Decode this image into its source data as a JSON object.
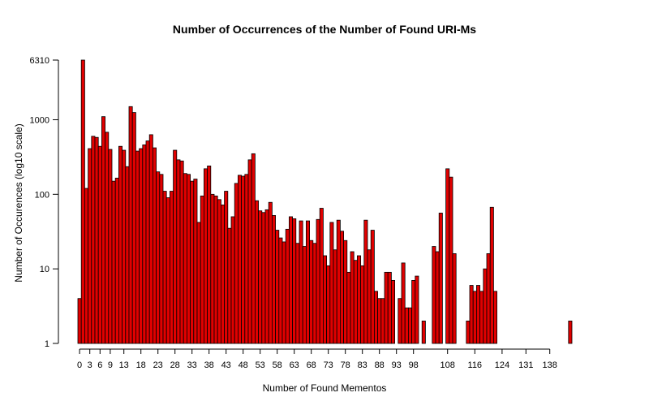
{
  "chart_data": {
    "type": "bar",
    "title": "Number of Occurrences of the Number of Found URI-Ms",
    "xlabel": "Number of Found Mementos",
    "ylabel": "Number of Occurences (log10 scale)",
    "log_y": true,
    "ylim": [
      1,
      6310
    ],
    "grid": false,
    "legend": "none",
    "bar_color": "#e00000",
    "bar_outline": "#000000",
    "y_ticks": [
      1,
      10,
      100,
      1000,
      6310
    ],
    "x_tick_labels": [
      "0",
      "3",
      "6",
      "9",
      "13",
      "18",
      "23",
      "28",
      "33",
      "38",
      "43",
      "48",
      "53",
      "58",
      "63",
      "68",
      "73",
      "78",
      "83",
      "88",
      "93",
      "98",
      "108",
      "116",
      "124",
      "131",
      "138"
    ],
    "categories": [
      0,
      1,
      2,
      3,
      4,
      5,
      6,
      7,
      8,
      9,
      10,
      11,
      12,
      13,
      14,
      15,
      16,
      17,
      18,
      19,
      20,
      21,
      22,
      23,
      24,
      25,
      26,
      27,
      28,
      29,
      30,
      31,
      32,
      33,
      34,
      35,
      36,
      37,
      38,
      39,
      40,
      41,
      42,
      43,
      44,
      45,
      46,
      47,
      48,
      49,
      50,
      51,
      52,
      53,
      54,
      55,
      56,
      57,
      58,
      59,
      60,
      61,
      62,
      63,
      64,
      65,
      66,
      67,
      68,
      69,
      70,
      71,
      72,
      73,
      74,
      75,
      76,
      77,
      78,
      79,
      80,
      81,
      82,
      83,
      84,
      85,
      86,
      87,
      88,
      89,
      90,
      91,
      92,
      93,
      94,
      95,
      96,
      97,
      98,
      99,
      100,
      101,
      102,
      103,
      104,
      105,
      106,
      107,
      108,
      109,
      110,
      111,
      112,
      113,
      114,
      115,
      116,
      117,
      118,
      119,
      120,
      121,
      122,
      123,
      124,
      125,
      126,
      127,
      128,
      129,
      130,
      131,
      132,
      133,
      134,
      135,
      136,
      137,
      138,
      139,
      140,
      141,
      142,
      143,
      144
    ],
    "values": [
      4,
      6310,
      120,
      410,
      600,
      580,
      440,
      1100,
      680,
      400,
      150,
      165,
      440,
      390,
      235,
      1500,
      1250,
      380,
      410,
      460,
      520,
      630,
      420,
      200,
      185,
      110,
      90,
      110,
      390,
      290,
      280,
      190,
      185,
      150,
      160,
      42,
      95,
      220,
      240,
      100,
      95,
      85,
      72,
      110,
      35,
      50,
      140,
      180,
      175,
      185,
      290,
      350,
      82,
      60,
      57,
      62,
      78,
      52,
      33,
      26,
      23,
      34,
      50,
      47,
      22,
      44,
      20,
      44,
      24,
      22,
      46,
      65,
      15,
      11,
      42,
      18,
      45,
      32,
      24,
      9,
      17,
      13,
      15,
      11,
      45,
      18,
      33,
      5,
      4,
      4,
      9,
      9,
      7,
      0,
      4,
      12,
      3,
      3,
      7,
      8,
      0,
      2,
      0,
      0,
      20,
      17,
      56,
      0,
      220,
      170,
      16,
      0,
      0,
      0,
      2,
      6,
      5,
      6,
      5,
      10,
      16,
      67,
      5,
      0,
      0,
      0,
      0,
      0,
      0,
      0,
      0,
      0,
      0,
      0,
      0,
      0,
      0,
      0,
      0,
      0,
      0,
      0,
      0,
      0,
      2
    ]
  }
}
